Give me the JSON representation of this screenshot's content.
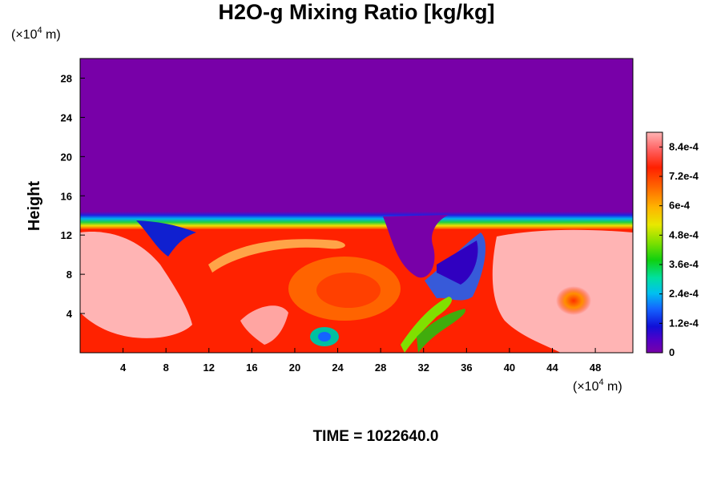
{
  "chart_data": {
    "type": "heatmap",
    "title": "H2O-g Mixing Ratio [kg/kg]",
    "ylabel": "Height",
    "xlabel": "",
    "y_units": "(×10",
    "y_units_exp": "4",
    "y_units_tail": " m)",
    "x_units": "(×10",
    "x_units_exp": "4",
    "x_units_tail": " m)",
    "xlim": [
      0,
      51.5
    ],
    "ylim": [
      0,
      30
    ],
    "x_ticks": [
      "4",
      "8",
      "12",
      "16",
      "20",
      "24",
      "28",
      "32",
      "36",
      "40",
      "44",
      "48"
    ],
    "x_tick_values": [
      4,
      8,
      12,
      16,
      20,
      24,
      28,
      32,
      36,
      40,
      44,
      48
    ],
    "y_ticks": [
      "4",
      "8",
      "12",
      "16",
      "20",
      "24",
      "28"
    ],
    "y_tick_values": [
      4,
      8,
      12,
      16,
      20,
      24,
      28
    ],
    "colorbar": {
      "range": [
        0,
        0.0009
      ],
      "labels": [
        "0",
        "1.2e-4",
        "2.4e-4",
        "3.6e-4",
        "4.8e-4",
        "6e-4",
        "7.2e-4",
        "8.4e-4"
      ],
      "values": [
        0,
        0.00012,
        0.00024,
        0.00036,
        0.00048,
        0.0006,
        0.00072,
        0.00084
      ]
    },
    "field_summary": {
      "dry_layer_above_height": 14,
      "moist_layer_top_height": 12.5,
      "colors": {
        "dry": "#7800a8",
        "moist_max": "#ffb8b8"
      }
    }
  },
  "footer": {
    "time_label": "TIME = 1022640.0"
  }
}
